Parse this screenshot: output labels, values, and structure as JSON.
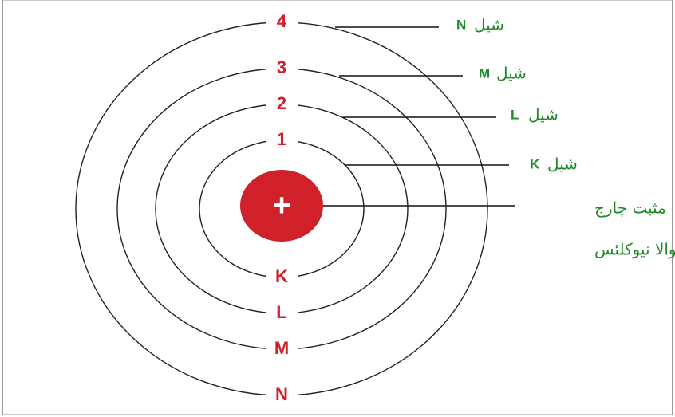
{
  "nucleus": {
    "symbol": "+",
    "label_lines": [
      "مثبت چارج",
      "والا نیوکلئس"
    ]
  },
  "shells": [
    {
      "top_number": "4",
      "bottom_letter": "N",
      "label_letter": "N",
      "label_word": "شیل"
    },
    {
      "top_number": "3",
      "bottom_letter": "M",
      "label_letter": "M",
      "label_word": "شیل"
    },
    {
      "top_number": "2",
      "bottom_letter": "L",
      "label_letter": "L",
      "label_word": "شیل"
    },
    {
      "top_number": "1",
      "bottom_letter": "K",
      "label_letter": "K",
      "label_word": "شیل"
    }
  ]
}
